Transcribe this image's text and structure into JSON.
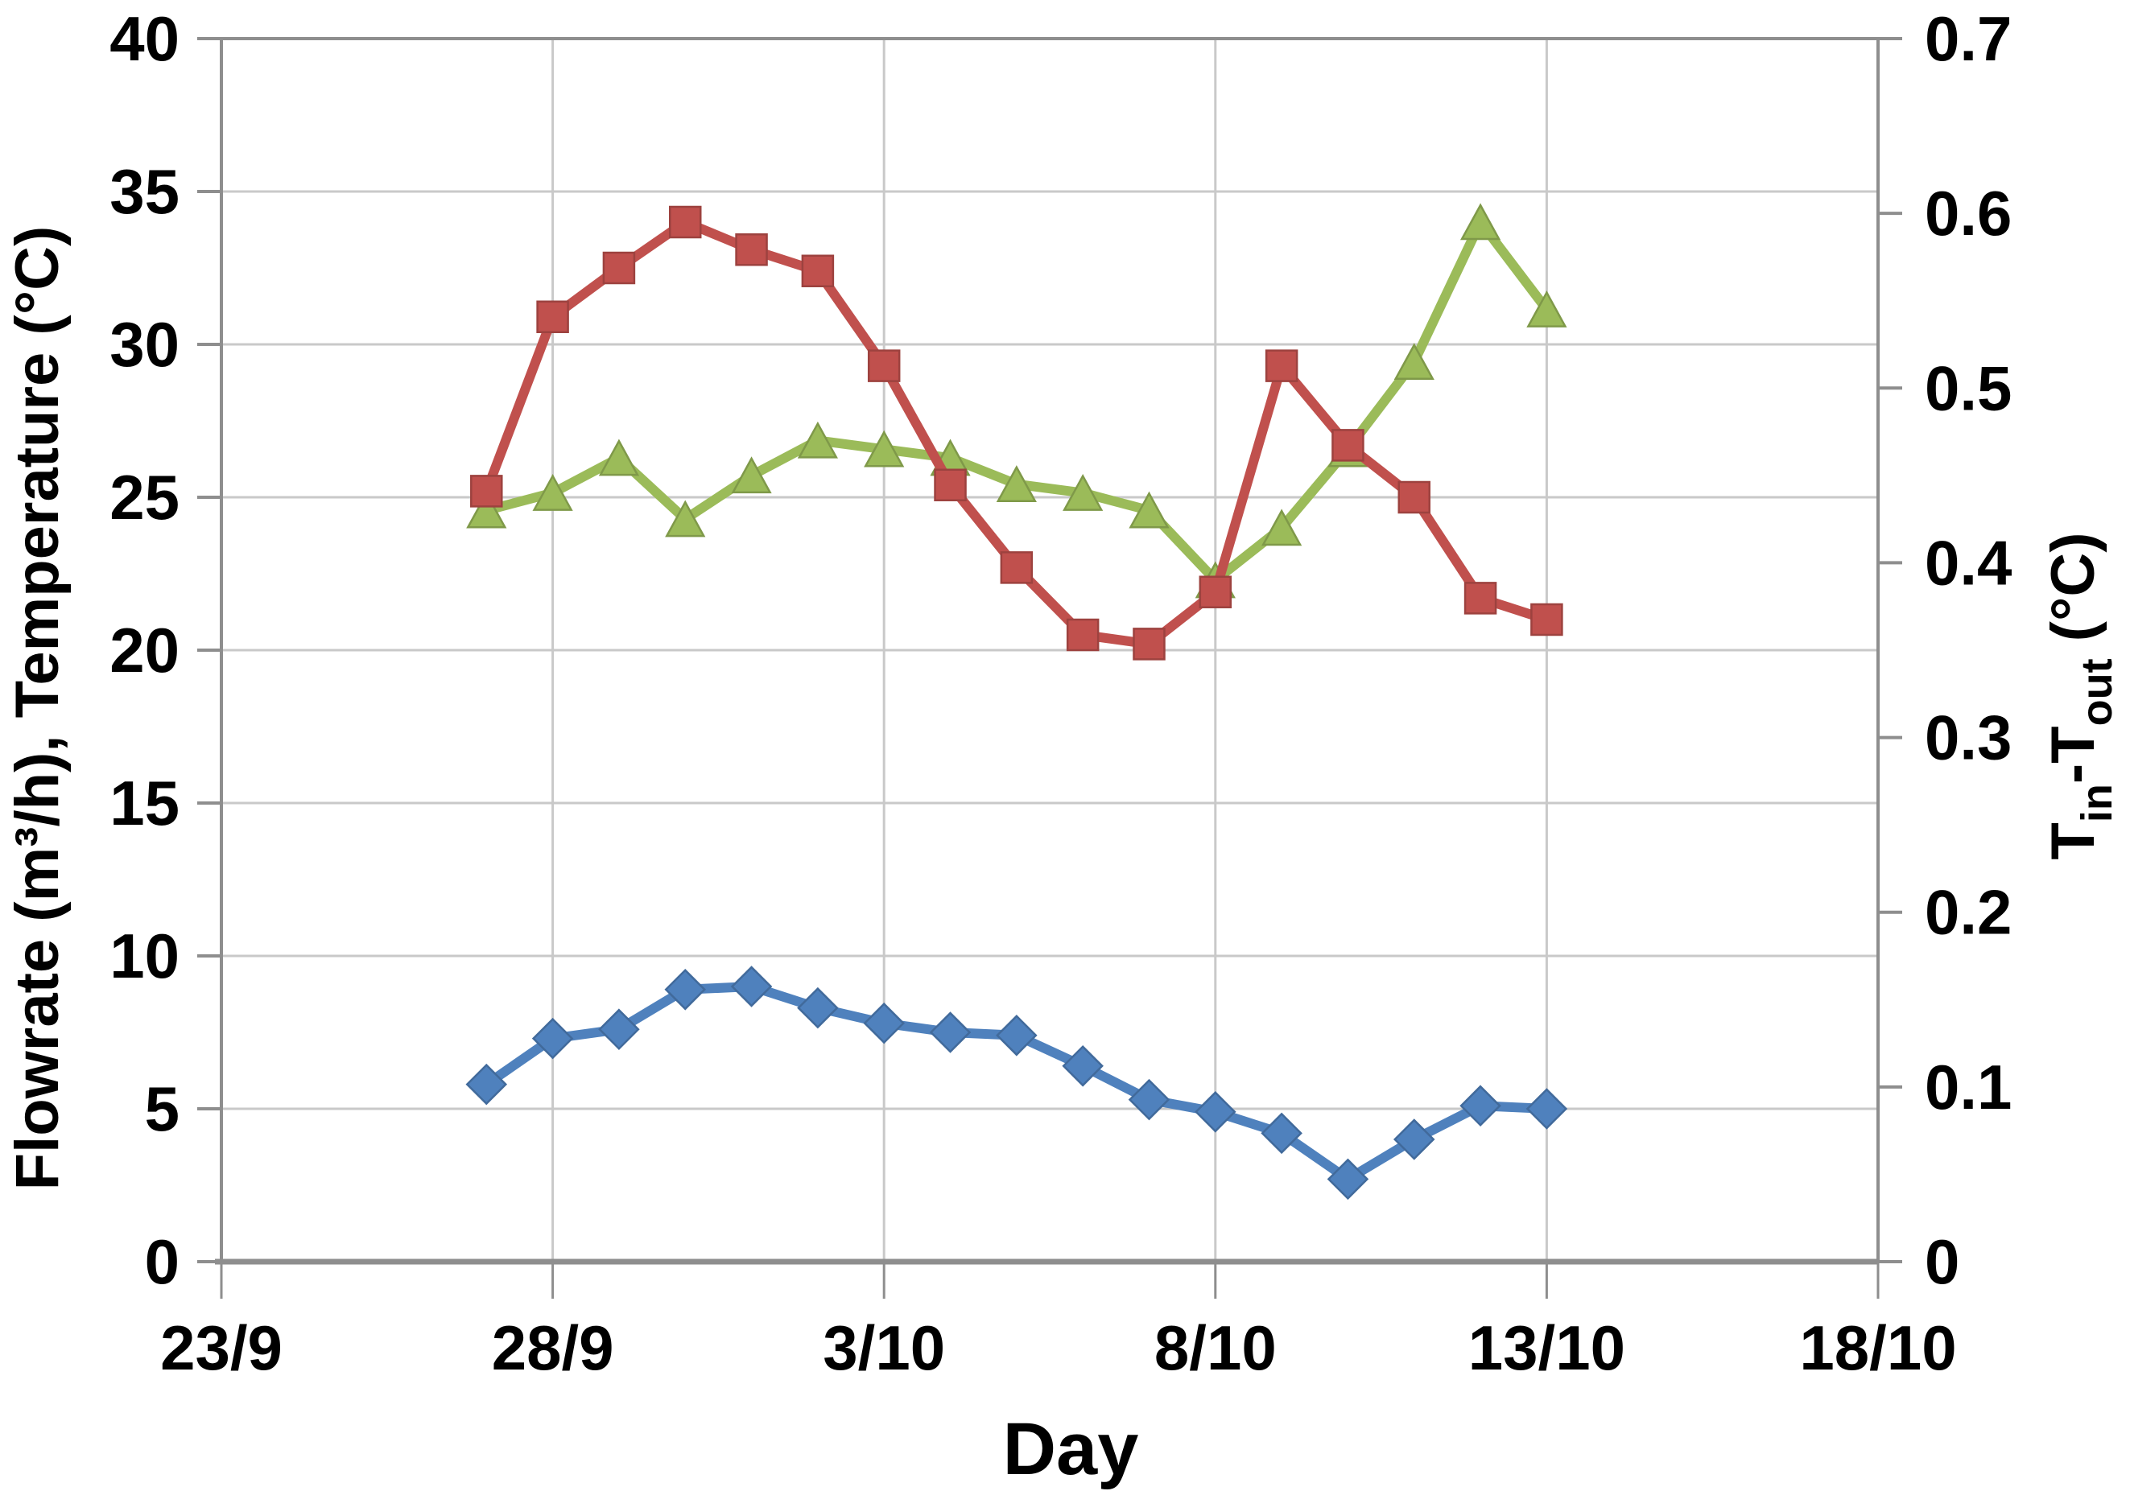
{
  "chart_data": {
    "type": "line",
    "title": "",
    "xlabel": "Day",
    "ylabel_left": "Flowrate (m³/h), Temperature (°C)",
    "ylabel_right": {
      "t1": "T",
      "sub1": "in",
      "t2": "-T",
      "sub2": "out",
      "t3": " (°C)"
    },
    "axes": {
      "left": {
        "min": 0,
        "max": 40,
        "ticks": [
          {
            "v": 0,
            "label": "0"
          },
          {
            "v": 5,
            "label": "5"
          },
          {
            "v": 10,
            "label": "10"
          },
          {
            "v": 15,
            "label": "15"
          },
          {
            "v": 20,
            "label": "20"
          },
          {
            "v": 25,
            "label": "25"
          },
          {
            "v": 30,
            "label": "30"
          },
          {
            "v": 35,
            "label": "35"
          },
          {
            "v": 40,
            "label": "40"
          }
        ]
      },
      "right": {
        "min": 0,
        "max": 0.7,
        "ticks": [
          {
            "v": 0,
            "label": "0"
          },
          {
            "v": 0.1,
            "label": "0.1"
          },
          {
            "v": 0.2,
            "label": "0.2"
          },
          {
            "v": 0.3,
            "label": "0.3"
          },
          {
            "v": 0.4,
            "label": "0.4"
          },
          {
            "v": 0.5,
            "label": "0.5"
          },
          {
            "v": 0.6,
            "label": "0.6"
          },
          {
            "v": 0.7,
            "label": "0.7"
          }
        ]
      },
      "x": {
        "min_day": 0,
        "max_day": 25,
        "ticks": [
          {
            "day": 0,
            "label": "23/9"
          },
          {
            "day": 5,
            "label": "28/9"
          },
          {
            "day": 10,
            "label": "3/10"
          },
          {
            "day": 15,
            "label": "8/10"
          },
          {
            "day": 20,
            "label": "13/10"
          },
          {
            "day": 25,
            "label": "18/10"
          }
        ]
      }
    },
    "grid": {
      "horizontal": true,
      "vertical": true,
      "legend": "none"
    },
    "x_days": [
      4,
      5,
      6,
      7,
      8,
      9,
      10,
      11,
      12,
      13,
      14,
      15,
      16,
      17,
      18,
      19,
      20
    ],
    "x_point_labels": [
      "27/9",
      "28/9",
      "29/9",
      "30/9",
      "1/10",
      "2/10",
      "3/10",
      "4/10",
      "5/10",
      "6/10",
      "7/10",
      "8/10",
      "9/10",
      "10/10",
      "11/10",
      "12/10",
      "13/10"
    ],
    "series": [
      {
        "name": "flowrate",
        "axis": "left",
        "marker": "diamond",
        "color": "#4F81BD",
        "values": [
          5.8,
          7.3,
          7.6,
          8.9,
          9.0,
          8.3,
          7.8,
          7.5,
          7.4,
          6.4,
          5.3,
          4.9,
          4.2,
          2.7,
          4.0,
          5.1,
          5.0
        ]
      },
      {
        "name": "temperature",
        "axis": "left",
        "marker": "square",
        "color": "#C0504D",
        "values": [
          25.2,
          30.9,
          32.5,
          34.0,
          33.1,
          32.4,
          29.3,
          25.4,
          22.7,
          20.5,
          20.2,
          21.9,
          29.3,
          26.7,
          25.0,
          21.7,
          21.0
        ]
      },
      {
        "name": "tin-minus-tout",
        "axis": "right",
        "marker": "triangle",
        "color": "#9BBB59",
        "values": [
          0.43,
          0.44,
          0.46,
          0.425,
          0.45,
          0.47,
          0.465,
          0.46,
          0.445,
          0.44,
          0.43,
          0.39,
          0.42,
          0.465,
          0.515,
          0.595,
          0.545
        ]
      }
    ],
    "colors": {
      "background": "#FFFFFF",
      "gridline": "#C9C9C9",
      "axis_line": "#8E8E8E",
      "text": "#000000"
    }
  }
}
